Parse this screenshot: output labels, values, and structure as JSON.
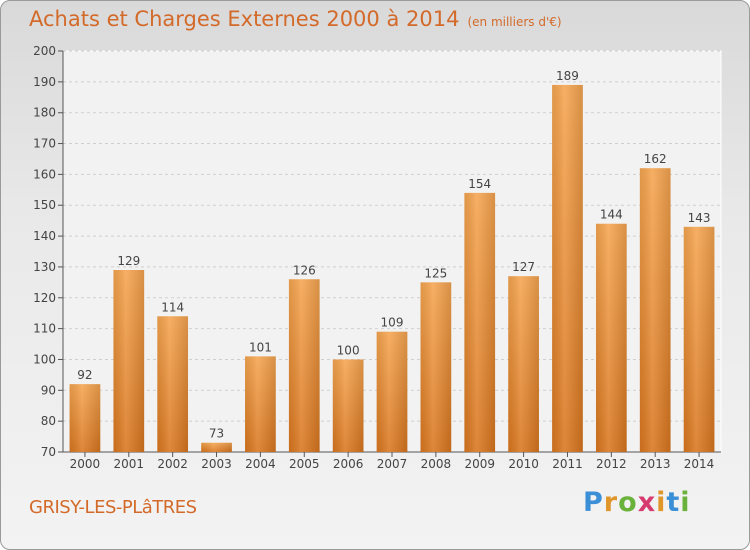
{
  "title": "Achats et Charges Externes 2000 à 2014",
  "subtitle": "(en milliers d'€)",
  "commune": "GRISY-LES-PLâTRES",
  "logo": {
    "letters": [
      "P",
      "r",
      "o",
      "x",
      "i",
      "t",
      "i"
    ],
    "colors": [
      "#3a8fd6",
      "#e0962a",
      "#6ab23c",
      "#d63a6e",
      "#e0962a",
      "#3a8fd6",
      "#6ab23c"
    ]
  },
  "colors": {
    "bar": "#f08c2a",
    "bar_light": "#f5a85a",
    "accent": "#d36a2a"
  },
  "chart_data": {
    "type": "bar",
    "title": "Achats et Charges Externes 2000 à 2014",
    "subtitle": "(en milliers d'€)",
    "categories": [
      "2000",
      "2001",
      "2002",
      "2003",
      "2004",
      "2005",
      "2006",
      "2007",
      "2008",
      "2009",
      "2010",
      "2011",
      "2012",
      "2013",
      "2014"
    ],
    "values": [
      92,
      129,
      114,
      73,
      101,
      126,
      100,
      109,
      125,
      154,
      127,
      189,
      144,
      162,
      143
    ],
    "ylim": [
      70,
      200
    ],
    "yticks": [
      70,
      80,
      90,
      100,
      110,
      120,
      130,
      140,
      150,
      160,
      170,
      180,
      190,
      200
    ],
    "grid": true,
    "legend": "none"
  }
}
